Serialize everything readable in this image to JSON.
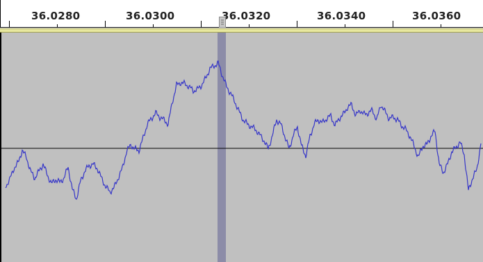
{
  "timeline": {
    "tick_labels": [
      "36.0280",
      "36.0300",
      "36.0320",
      "36.0340",
      "36.0360"
    ]
  },
  "track": {
    "background_color": "#c0c0c0",
    "waveform_color": "#3535c8",
    "cursor_color": "#8a8aaa",
    "zero_line_color": "#000000"
  },
  "playhead": {
    "grip_icon": "playhead-grip-icon"
  }
}
